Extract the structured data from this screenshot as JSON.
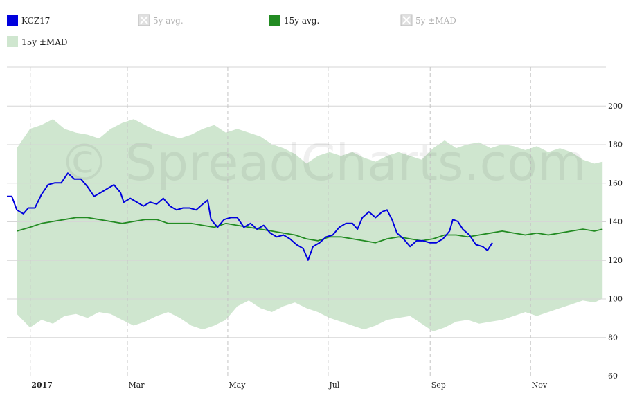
{
  "watermark": "© SpreadCharts.com",
  "legend": [
    {
      "label": "KCZ17",
      "color": "#0000dd",
      "enabled": true,
      "kind": "line"
    },
    {
      "label": "5y avg.",
      "color": "#999999",
      "enabled": false,
      "kind": "line"
    },
    {
      "label": "15y avg.",
      "color": "#228b22",
      "enabled": true,
      "kind": "line"
    },
    {
      "label": "5y ±MAD",
      "color": "#aaaaaa",
      "enabled": false,
      "kind": "band"
    },
    {
      "label": "15y ±MAD",
      "color": "#cfe6cf",
      "enabled": true,
      "kind": "band"
    }
  ],
  "chart_data": {
    "type": "line",
    "x_axis": {
      "range": [
        "2016-12-18",
        "2017-12-17"
      ],
      "ticks": [
        {
          "date": "2017-01-01",
          "label": "2017",
          "bold": true
        },
        {
          "date": "2017-03-01",
          "label": "Mar"
        },
        {
          "date": "2017-05-01",
          "label": "May"
        },
        {
          "date": "2017-07-01",
          "label": "Jul"
        },
        {
          "date": "2017-09-01",
          "label": "Sep"
        },
        {
          "date": "2017-11-01",
          "label": "Nov"
        }
      ]
    },
    "y_axis": {
      "range": [
        60,
        220
      ],
      "ticks": [
        60,
        80,
        100,
        120,
        140,
        160,
        180,
        200
      ],
      "position": "right"
    },
    "grid": {
      "horizontal": true,
      "vertical_dashed": true
    },
    "series": [
      {
        "name": "15y ±MAD",
        "type": "band",
        "color": "#cfe6cf",
        "upper": [
          [
            "2016-12-24",
            178
          ],
          [
            "2017-01-01",
            188
          ],
          [
            "2017-01-08",
            190
          ],
          [
            "2017-01-15",
            193
          ],
          [
            "2017-01-22",
            188
          ],
          [
            "2017-01-29",
            186
          ],
          [
            "2017-02-05",
            185
          ],
          [
            "2017-02-12",
            183
          ],
          [
            "2017-02-19",
            188
          ],
          [
            "2017-02-26",
            191
          ],
          [
            "2017-03-05",
            193
          ],
          [
            "2017-03-12",
            190
          ],
          [
            "2017-03-19",
            187
          ],
          [
            "2017-03-26",
            185
          ],
          [
            "2017-04-02",
            183
          ],
          [
            "2017-04-09",
            185
          ],
          [
            "2017-04-16",
            188
          ],
          [
            "2017-04-23",
            190
          ],
          [
            "2017-04-30",
            186
          ],
          [
            "2017-05-07",
            188
          ],
          [
            "2017-05-14",
            186
          ],
          [
            "2017-05-21",
            184
          ],
          [
            "2017-05-28",
            180
          ],
          [
            "2017-06-04",
            178
          ],
          [
            "2017-06-11",
            175
          ],
          [
            "2017-06-18",
            170
          ],
          [
            "2017-06-25",
            174
          ],
          [
            "2017-07-02",
            176
          ],
          [
            "2017-07-09",
            174
          ],
          [
            "2017-07-16",
            176
          ],
          [
            "2017-07-23",
            173
          ],
          [
            "2017-07-30",
            171
          ],
          [
            "2017-08-06",
            174
          ],
          [
            "2017-08-13",
            176
          ],
          [
            "2017-08-20",
            174
          ],
          [
            "2017-08-27",
            172
          ],
          [
            "2017-09-03",
            178
          ],
          [
            "2017-09-10",
            182
          ],
          [
            "2017-09-17",
            178
          ],
          [
            "2017-09-24",
            180
          ],
          [
            "2017-10-01",
            181
          ],
          [
            "2017-10-08",
            178
          ],
          [
            "2017-10-15",
            180
          ],
          [
            "2017-10-22",
            179
          ],
          [
            "2017-10-29",
            177
          ],
          [
            "2017-11-05",
            179
          ],
          [
            "2017-11-12",
            176
          ],
          [
            "2017-11-19",
            178
          ],
          [
            "2017-11-26",
            176
          ],
          [
            "2017-12-03",
            172
          ],
          [
            "2017-12-10",
            170
          ],
          [
            "2017-12-15",
            171
          ]
        ],
        "lower": [
          [
            "2016-12-24",
            92
          ],
          [
            "2017-01-01",
            85
          ],
          [
            "2017-01-08",
            89
          ],
          [
            "2017-01-15",
            87
          ],
          [
            "2017-01-22",
            91
          ],
          [
            "2017-01-29",
            92
          ],
          [
            "2017-02-05",
            90
          ],
          [
            "2017-02-12",
            93
          ],
          [
            "2017-02-19",
            92
          ],
          [
            "2017-02-26",
            89
          ],
          [
            "2017-03-05",
            86
          ],
          [
            "2017-03-12",
            88
          ],
          [
            "2017-03-19",
            91
          ],
          [
            "2017-03-26",
            93
          ],
          [
            "2017-04-02",
            90
          ],
          [
            "2017-04-09",
            86
          ],
          [
            "2017-04-16",
            84
          ],
          [
            "2017-04-23",
            86
          ],
          [
            "2017-04-30",
            89
          ],
          [
            "2017-05-07",
            96
          ],
          [
            "2017-05-14",
            99
          ],
          [
            "2017-05-21",
            95
          ],
          [
            "2017-05-28",
            93
          ],
          [
            "2017-06-04",
            96
          ],
          [
            "2017-06-11",
            98
          ],
          [
            "2017-06-18",
            95
          ],
          [
            "2017-06-25",
            93
          ],
          [
            "2017-07-02",
            90
          ],
          [
            "2017-07-09",
            88
          ],
          [
            "2017-07-16",
            86
          ],
          [
            "2017-07-23",
            84
          ],
          [
            "2017-07-30",
            86
          ],
          [
            "2017-08-06",
            89
          ],
          [
            "2017-08-13",
            90
          ],
          [
            "2017-08-20",
            91
          ],
          [
            "2017-08-27",
            87
          ],
          [
            "2017-09-03",
            83
          ],
          [
            "2017-09-10",
            85
          ],
          [
            "2017-09-17",
            88
          ],
          [
            "2017-09-24",
            89
          ],
          [
            "2017-10-01",
            87
          ],
          [
            "2017-10-08",
            88
          ],
          [
            "2017-10-15",
            89
          ],
          [
            "2017-10-22",
            91
          ],
          [
            "2017-10-29",
            93
          ],
          [
            "2017-11-05",
            91
          ],
          [
            "2017-11-12",
            93
          ],
          [
            "2017-11-19",
            95
          ],
          [
            "2017-11-26",
            97
          ],
          [
            "2017-12-03",
            99
          ],
          [
            "2017-12-10",
            98
          ],
          [
            "2017-12-15",
            100
          ]
        ]
      },
      {
        "name": "15y avg.",
        "type": "line",
        "color": "#228b22",
        "points": [
          [
            "2016-12-24",
            135
          ],
          [
            "2017-01-01",
            137
          ],
          [
            "2017-01-08",
            139
          ],
          [
            "2017-01-15",
            140
          ],
          [
            "2017-01-22",
            141
          ],
          [
            "2017-01-29",
            142
          ],
          [
            "2017-02-05",
            142
          ],
          [
            "2017-02-12",
            141
          ],
          [
            "2017-02-19",
            140
          ],
          [
            "2017-02-26",
            139
          ],
          [
            "2017-03-05",
            140
          ],
          [
            "2017-03-12",
            141
          ],
          [
            "2017-03-19",
            141
          ],
          [
            "2017-03-26",
            139
          ],
          [
            "2017-04-02",
            139
          ],
          [
            "2017-04-09",
            139
          ],
          [
            "2017-04-16",
            138
          ],
          [
            "2017-04-23",
            137
          ],
          [
            "2017-04-30",
            139
          ],
          [
            "2017-05-07",
            138
          ],
          [
            "2017-05-14",
            137
          ],
          [
            "2017-05-21",
            136
          ],
          [
            "2017-05-28",
            135
          ],
          [
            "2017-06-04",
            134
          ],
          [
            "2017-06-11",
            133
          ],
          [
            "2017-06-18",
            131
          ],
          [
            "2017-06-25",
            130
          ],
          [
            "2017-07-02",
            132
          ],
          [
            "2017-07-09",
            132
          ],
          [
            "2017-07-16",
            131
          ],
          [
            "2017-07-23",
            130
          ],
          [
            "2017-07-30",
            129
          ],
          [
            "2017-08-06",
            131
          ],
          [
            "2017-08-13",
            132
          ],
          [
            "2017-08-20",
            131
          ],
          [
            "2017-08-27",
            130
          ],
          [
            "2017-09-03",
            131
          ],
          [
            "2017-09-10",
            133
          ],
          [
            "2017-09-17",
            133
          ],
          [
            "2017-09-24",
            132
          ],
          [
            "2017-10-01",
            133
          ],
          [
            "2017-10-08",
            134
          ],
          [
            "2017-10-15",
            135
          ],
          [
            "2017-10-22",
            134
          ],
          [
            "2017-10-29",
            133
          ],
          [
            "2017-11-05",
            134
          ],
          [
            "2017-11-12",
            133
          ],
          [
            "2017-11-19",
            134
          ],
          [
            "2017-11-26",
            135
          ],
          [
            "2017-12-03",
            136
          ],
          [
            "2017-12-10",
            135
          ],
          [
            "2017-12-15",
            136
          ]
        ]
      },
      {
        "name": "KCZ17",
        "type": "line",
        "color": "#0000dd",
        "points": [
          [
            "2016-12-18",
            153
          ],
          [
            "2016-12-21",
            153
          ],
          [
            "2016-12-24",
            146
          ],
          [
            "2016-12-28",
            144
          ],
          [
            "2016-12-31",
            147
          ],
          [
            "2017-01-04",
            147
          ],
          [
            "2017-01-08",
            154
          ],
          [
            "2017-01-12",
            159
          ],
          [
            "2017-01-16",
            160
          ],
          [
            "2017-01-20",
            160
          ],
          [
            "2017-01-24",
            165
          ],
          [
            "2017-01-28",
            162
          ],
          [
            "2017-02-01",
            162
          ],
          [
            "2017-02-05",
            158
          ],
          [
            "2017-02-09",
            153
          ],
          [
            "2017-02-13",
            155
          ],
          [
            "2017-02-17",
            157
          ],
          [
            "2017-02-21",
            159
          ],
          [
            "2017-02-25",
            155
          ],
          [
            "2017-02-27",
            150
          ],
          [
            "2017-03-03",
            152
          ],
          [
            "2017-03-07",
            150
          ],
          [
            "2017-03-11",
            148
          ],
          [
            "2017-03-15",
            150
          ],
          [
            "2017-03-19",
            149
          ],
          [
            "2017-03-23",
            152
          ],
          [
            "2017-03-27",
            148
          ],
          [
            "2017-03-31",
            146
          ],
          [
            "2017-04-04",
            147
          ],
          [
            "2017-04-08",
            147
          ],
          [
            "2017-04-12",
            146
          ],
          [
            "2017-04-16",
            149
          ],
          [
            "2017-04-19",
            151
          ],
          [
            "2017-04-21",
            141
          ],
          [
            "2017-04-25",
            137
          ],
          [
            "2017-04-29",
            141
          ],
          [
            "2017-05-03",
            142
          ],
          [
            "2017-05-07",
            142
          ],
          [
            "2017-05-11",
            137
          ],
          [
            "2017-05-15",
            139
          ],
          [
            "2017-05-19",
            136
          ],
          [
            "2017-05-23",
            138
          ],
          [
            "2017-05-27",
            134
          ],
          [
            "2017-05-31",
            132
          ],
          [
            "2017-06-04",
            133
          ],
          [
            "2017-06-08",
            131
          ],
          [
            "2017-06-12",
            128
          ],
          [
            "2017-06-16",
            126
          ],
          [
            "2017-06-19",
            120
          ],
          [
            "2017-06-22",
            127
          ],
          [
            "2017-06-26",
            129
          ],
          [
            "2017-06-30",
            132
          ],
          [
            "2017-07-04",
            133
          ],
          [
            "2017-07-08",
            137
          ],
          [
            "2017-07-12",
            139
          ],
          [
            "2017-07-16",
            139
          ],
          [
            "2017-07-19",
            136
          ],
          [
            "2017-07-22",
            142
          ],
          [
            "2017-07-26",
            145
          ],
          [
            "2017-07-30",
            142
          ],
          [
            "2017-08-03",
            145
          ],
          [
            "2017-08-06",
            146
          ],
          [
            "2017-08-09",
            141
          ],
          [
            "2017-08-12",
            134
          ],
          [
            "2017-08-16",
            131
          ],
          [
            "2017-08-20",
            127
          ],
          [
            "2017-08-24",
            130
          ],
          [
            "2017-08-28",
            130
          ],
          [
            "2017-09-01",
            129
          ],
          [
            "2017-09-05",
            129
          ],
          [
            "2017-09-09",
            131
          ],
          [
            "2017-09-13",
            135
          ],
          [
            "2017-09-15",
            141
          ],
          [
            "2017-09-18",
            140
          ],
          [
            "2017-09-21",
            136
          ],
          [
            "2017-09-25",
            133
          ],
          [
            "2017-09-29",
            128
          ],
          [
            "2017-10-03",
            127
          ],
          [
            "2017-10-06",
            125
          ],
          [
            "2017-10-09",
            129
          ]
        ]
      }
    ]
  }
}
